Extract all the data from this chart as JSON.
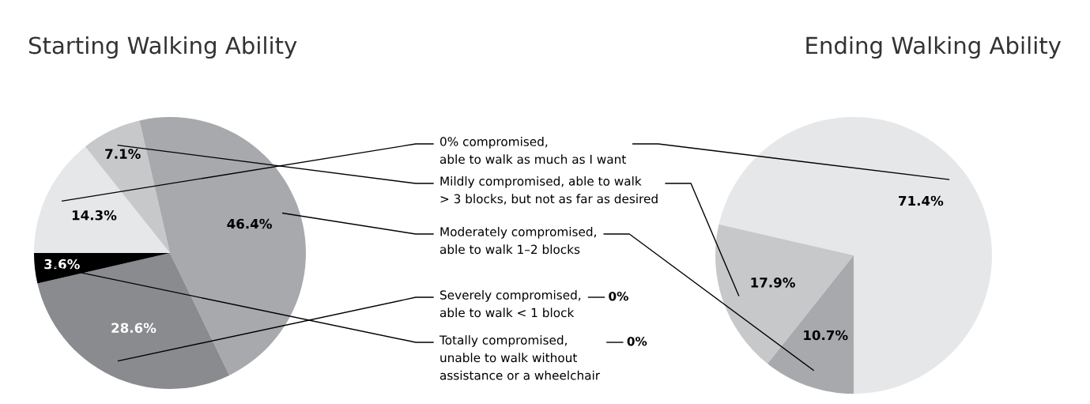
{
  "chart_data": [
    {
      "type": "pie",
      "title": "Starting Walking Ability",
      "categories": [
        "0% compromised,\nable to walk as much as I want",
        "Mildly compromised, able to walk\n> 3 blocks, but not as far as desired",
        "Moderately compromised,\nable to walk 1–2 blocks",
        "Severely compromised,\nable to walk < 1 block",
        "Totally compromised,\nunable to walk without\nassistance or a wheelchair"
      ],
      "values": [
        14.3,
        7.1,
        46.4,
        28.6,
        3.6
      ],
      "colors": [
        "#e6e7e8",
        "#c7c8ca",
        "#a7a9ac",
        "#898b8e",
        "#000000"
      ],
      "value_labels": [
        "14.3%",
        "7.1%",
        "46.4%",
        "28.6%",
        "3.6%"
      ]
    },
    {
      "type": "pie",
      "title": "Ending Walking Ability",
      "categories": [
        null,
        null,
        null,
        null,
        null
      ],
      "values": [
        71.4,
        17.9,
        10.7,
        0,
        0
      ],
      "colors": [
        "#e6e7e8",
        "#c7c8ca",
        "#a7a9ac",
        "#898b8e",
        "#000000"
      ],
      "value_labels": [
        "71.4%",
        "17.9%",
        "10.7%",
        "0%",
        "0%"
      ]
    }
  ]
}
